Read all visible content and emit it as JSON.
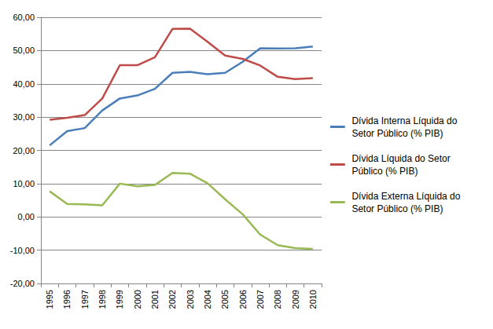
{
  "chart_data": {
    "type": "line",
    "categories": [
      "1995",
      "1996",
      "1997",
      "1998",
      "1999",
      "2000",
      "2001",
      "2002",
      "2003",
      "2004",
      "2005",
      "2006",
      "2007",
      "2008",
      "2009",
      "2010"
    ],
    "series": [
      {
        "name": "Dívida Interna Líquida do Setor Público (% PIB)",
        "color": "#4a7ebb",
        "values": [
          21.5,
          25.8,
          26.7,
          32.0,
          35.6,
          36.5,
          38.5,
          43.3,
          43.6,
          42.9,
          43.3,
          46.6,
          50.7,
          50.6,
          50.7,
          51.2
        ]
      },
      {
        "name": "Dívida Líquida do Setor Público (% PIB)",
        "color": "#be4b48",
        "values": [
          29.2,
          29.8,
          30.6,
          35.6,
          45.6,
          45.6,
          48.0,
          56.5,
          56.6,
          52.6,
          48.5,
          47.5,
          45.5,
          42.1,
          41.4,
          41.7
        ]
      },
      {
        "name": "Dívida Externa Líquida do Setor Público (% PIB)",
        "color": "#98b954",
        "values": [
          7.7,
          3.9,
          3.8,
          3.5,
          10.0,
          9.2,
          9.6,
          13.2,
          13.0,
          10.1,
          5.3,
          0.8,
          -5.3,
          -8.5,
          -9.4,
          -9.6
        ]
      }
    ],
    "ylim": [
      -20,
      60
    ],
    "yticks": [
      {
        "value": -20,
        "label": "-20,00"
      },
      {
        "value": -10,
        "label": "-10,00"
      },
      {
        "value": 0,
        "label": "0,00"
      },
      {
        "value": 10,
        "label": "10,00"
      },
      {
        "value": 20,
        "label": "20,00"
      },
      {
        "value": 30,
        "label": "30,00"
      },
      {
        "value": 40,
        "label": "40,00"
      },
      {
        "value": 50,
        "label": "50,00"
      },
      {
        "value": 60,
        "label": "60,00"
      }
    ],
    "grid": true,
    "legend": "right"
  }
}
